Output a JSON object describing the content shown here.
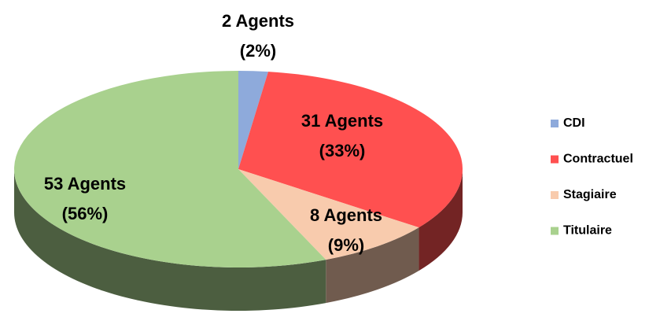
{
  "chart_data": {
    "type": "pie",
    "categories": [
      "CDI",
      "Contractuel",
      "Stagiaire",
      "Titulaire"
    ],
    "values": [
      2,
      31,
      8,
      53
    ],
    "value_labels": [
      "2 Agents",
      "31 Agents",
      "8 Agents",
      "53 Agents"
    ],
    "percent_labels": [
      "(2%)",
      "(33%)",
      "(9%)",
      "(56%)"
    ],
    "colors": [
      "#8eaadb",
      "#ff5050",
      "#f8cbad",
      "#a9d18e"
    ],
    "legend": "right"
  }
}
